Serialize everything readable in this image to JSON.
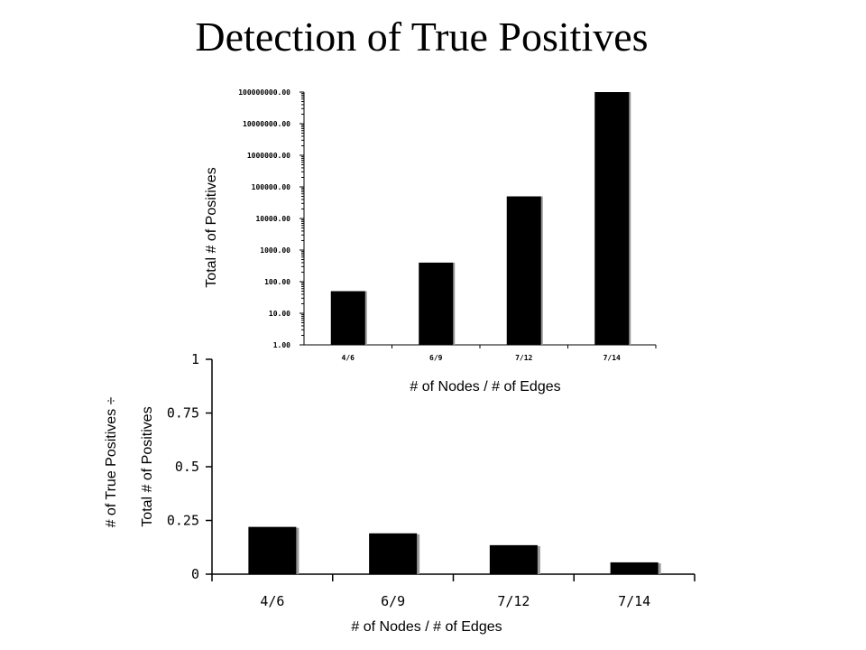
{
  "title": "Detection of True Positives",
  "chart_data": [
    {
      "type": "bar",
      "categories": [
        "4/6",
        "6/9",
        "7/12",
        "7/14"
      ],
      "values": [
        50,
        400,
        50000,
        100000000
      ],
      "yscale": "log",
      "ylim": [
        1,
        100000000
      ],
      "yticks": [
        "1.00",
        "10.00",
        "100.00",
        "1000.00",
        "10000.00",
        "100000.00",
        "1000000.00",
        "10000000.00",
        "100000000.00"
      ],
      "xlabel": "# of Nodes / # of Edges",
      "ylabel": "Total # of Positives",
      "grid": false,
      "legend": "none"
    },
    {
      "type": "bar",
      "categories": [
        "4/6",
        "6/9",
        "7/12",
        "7/14"
      ],
      "values": [
        0.22,
        0.19,
        0.135,
        0.055
      ],
      "ylim": [
        0,
        1
      ],
      "yticks": [
        "0",
        "0.25",
        "0.5",
        "0.75",
        "1"
      ],
      "xlabel": "# of Nodes / # of Edges",
      "ylabel_line1": "# of True Positives ÷",
      "ylabel_line2": "Total # of Positives",
      "grid": false,
      "legend": "none"
    }
  ]
}
